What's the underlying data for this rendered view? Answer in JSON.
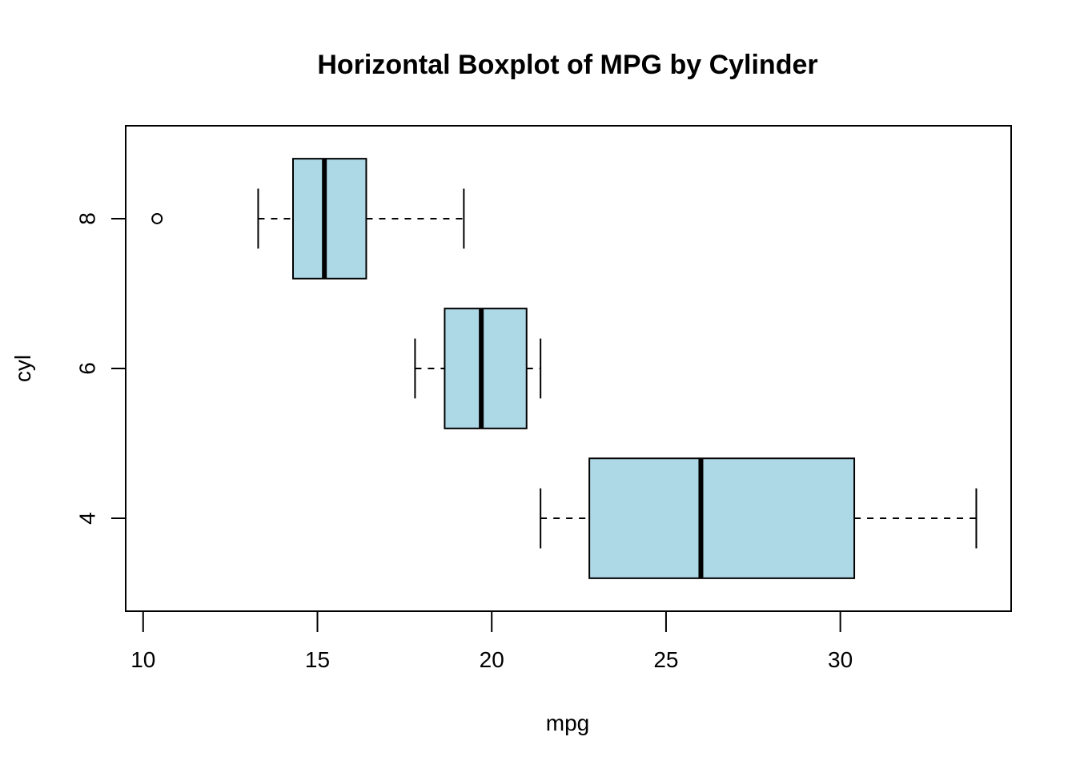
{
  "chart_data": {
    "type": "boxplot",
    "orientation": "horizontal",
    "title": "Horizontal Boxplot of MPG by Cylinder",
    "xlabel": "mpg",
    "ylabel": "cyl",
    "xlim": [
      9.5,
      34.9
    ],
    "xticks": [
      10,
      15,
      20,
      25,
      30
    ],
    "xtick_labels": [
      "10",
      "15",
      "20",
      "25",
      "30"
    ],
    "categories": [
      "4",
      "6",
      "8"
    ],
    "boxes": [
      {
        "category": "4",
        "whisker_low": 21.4,
        "q1": 22.8,
        "median": 26.0,
        "q3": 30.4,
        "whisker_high": 33.9,
        "outliers": []
      },
      {
        "category": "6",
        "whisker_low": 17.8,
        "q1": 18.65,
        "median": 19.7,
        "q3": 21.0,
        "whisker_high": 21.4,
        "outliers": []
      },
      {
        "category": "8",
        "whisker_low": 13.3,
        "q1": 14.3,
        "median": 15.2,
        "q3": 16.4,
        "whisker_high": 19.2,
        "outliers": [
          10.4
        ]
      }
    ],
    "box_fill": "#add8e6",
    "grid": false,
    "legend": "none"
  }
}
